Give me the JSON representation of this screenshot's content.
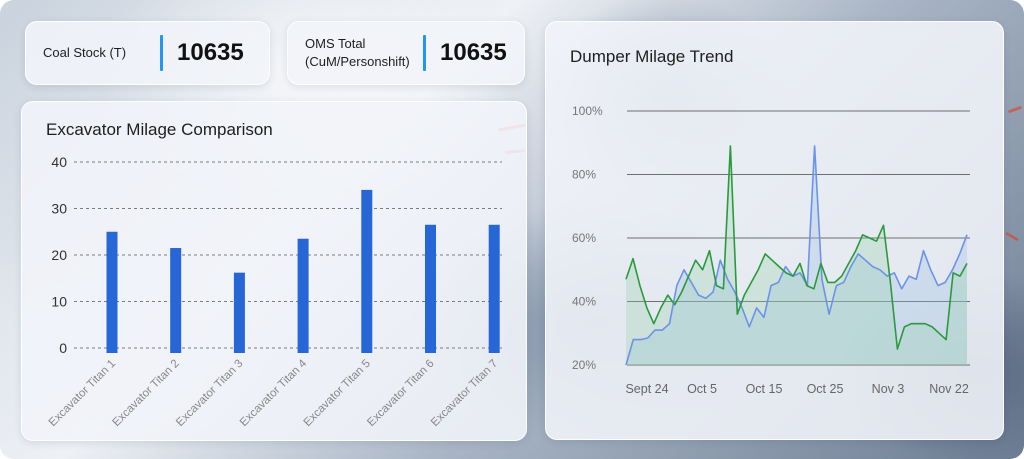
{
  "kpis": {
    "coal_stock": {
      "label": "Coal Stock (T)",
      "value": "10635"
    },
    "oms_total": {
      "label_line1": "OMS Total",
      "label_line2": "(CuM/Personshift)",
      "value": "10635"
    }
  },
  "colors": {
    "accent": "#2196f3",
    "bar": "#2666d6",
    "line_blue": "#6b93e8",
    "line_green": "#2a9a3c"
  },
  "chart_data": [
    {
      "type": "bar",
      "title": "Excavator Milage Comparison",
      "categories": [
        "Excavator Titan 1",
        "Excavator Titan 2",
        "Excavator Titan 3",
        "Excavator Titan 4",
        "Excavator Titan 5",
        "Excavator Titan 6",
        "Excavator Titan 7"
      ],
      "values": [
        25,
        21.5,
        16.2,
        23.5,
        34,
        26.5,
        26.5
      ],
      "ylim": [
        0,
        40
      ],
      "yticks": [
        "0",
        "10",
        "20",
        "30",
        "40"
      ],
      "grid": true
    },
    {
      "type": "line",
      "title": "Dumper Milage Trend",
      "xticks": [
        "Sept 24",
        "Oct 5",
        "Oct 15",
        "Oct 25",
        "Nov 3",
        "Nov 22"
      ],
      "yticks": [
        "20%",
        "40%",
        "60%",
        "80%",
        "100%"
      ],
      "ylim": [
        20,
        100
      ],
      "grid": true,
      "series": [
        {
          "values": [
            20,
            28,
            28,
            28.5,
            31,
            31,
            33,
            45,
            50,
            46,
            42,
            41,
            43,
            53,
            47,
            43,
            38,
            32,
            38,
            35,
            45,
            46,
            51,
            48,
            49,
            45,
            89,
            47,
            36,
            45,
            46,
            51,
            55,
            53,
            51,
            50,
            48,
            49,
            44,
            48,
            47,
            56,
            50,
            45,
            46,
            50,
            55,
            61
          ]
        },
        {
          "values": [
            47,
            53.5,
            45,
            38,
            33,
            38,
            42,
            39,
            43,
            48,
            53,
            50,
            56,
            45,
            44,
            89,
            36,
            42,
            46,
            50,
            55,
            53,
            51,
            49,
            48,
            52,
            45,
            44,
            52,
            46,
            46,
            48,
            52,
            56,
            61,
            60,
            59,
            64,
            46,
            25,
            32,
            33,
            33,
            33,
            32,
            30,
            28,
            49,
            48,
            52
          ]
        }
      ]
    }
  ]
}
